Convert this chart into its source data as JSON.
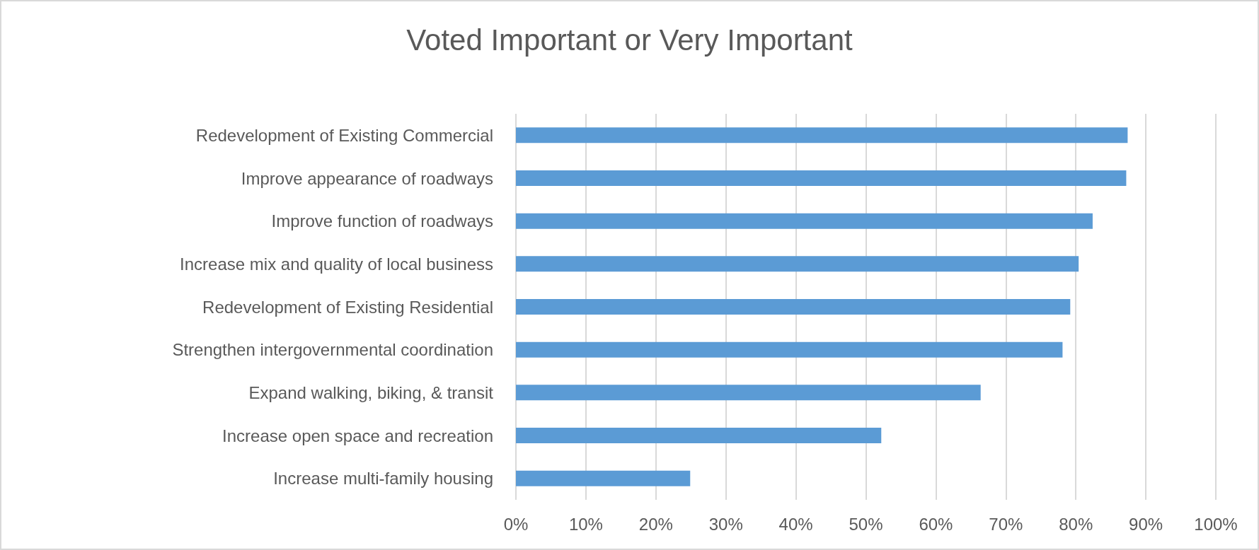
{
  "chart_data": {
    "type": "bar",
    "title": "Voted Important or Very Important",
    "orientation": "horizontal",
    "categories": [
      "Redevelopment of Existing Commercial",
      "Improve appearance of roadways",
      "Improve function of roadways",
      "Increase mix and quality of local business",
      "Redevelopment of Existing Residential",
      "Strengthen intergovernmental coordination",
      "Expand walking, biking, & transit",
      "Increase open space and recreation",
      "Increase multi-family housing"
    ],
    "values": [
      87.4,
      87.2,
      82.4,
      80.4,
      79.2,
      78.1,
      66.4,
      52.2,
      24.9
    ],
    "color": "#5b9bd5",
    "xlim": [
      0,
      100
    ],
    "xticks": [
      {
        "value": 0,
        "label": "0%"
      },
      {
        "value": 10,
        "label": "10%"
      },
      {
        "value": 20,
        "label": "20%"
      },
      {
        "value": 30,
        "label": "30%"
      },
      {
        "value": 40,
        "label": "40%"
      },
      {
        "value": 50,
        "label": "50%"
      },
      {
        "value": 60,
        "label": "60%"
      },
      {
        "value": 70,
        "label": "70%"
      },
      {
        "value": 80,
        "label": "80%"
      },
      {
        "value": 90,
        "label": "90%"
      },
      {
        "value": 100,
        "label": "100%"
      }
    ],
    "grid": "x"
  }
}
